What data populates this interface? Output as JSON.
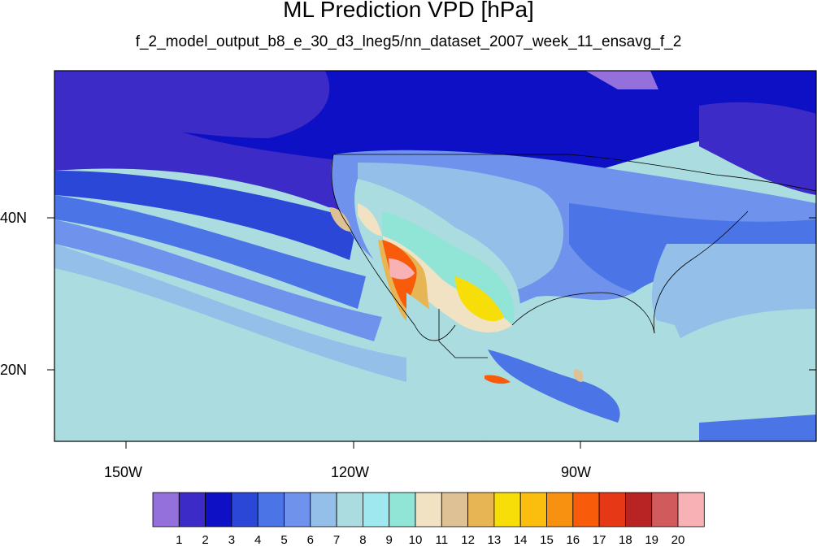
{
  "title": "ML Prediction VPD [hPa]",
  "subtitle": "f_2_model_output_b8_e_30_d3_lneg5/nn_dataset_2007_week_11_ensavg_f_2",
  "axes": {
    "lat_labels": [
      "40N",
      "20N"
    ],
    "lon_labels": [
      "150W",
      "120W",
      "90W"
    ]
  },
  "colorbar": {
    "labels": [
      "1",
      "2",
      "3",
      "4",
      "5",
      "6",
      "7",
      "8",
      "9",
      "10",
      "11",
      "12",
      "13",
      "14",
      "15",
      "16",
      "17",
      "18",
      "19",
      "20"
    ],
    "colors": [
      "#9370db",
      "#3c2bc6",
      "#0d10c4",
      "#2a47d8",
      "#4b75e6",
      "#6f93ec",
      "#93bfe9",
      "#abdcdf",
      "#a0e8ef",
      "#90e5d7",
      "#f2e2c4",
      "#dfc196",
      "#e8b554",
      "#f8de09",
      "#fbbe0e",
      "#f99110",
      "#f85c0b",
      "#e63816",
      "#b82424",
      "#d15a5c",
      "#f8b2b6"
    ]
  },
  "legend": {
    "text_color": "#000000"
  }
}
